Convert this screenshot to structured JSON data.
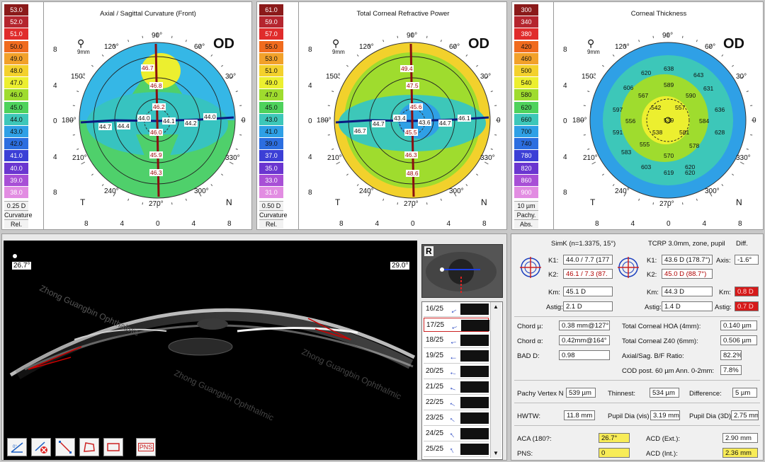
{
  "maps": [
    {
      "title": "Axial / Sagittal Curvature (Front)",
      "eye": "OD",
      "scale": [
        "53.0",
        "52.0",
        "51.0",
        "50.0",
        "49.0",
        "48.0",
        "47.0",
        "46.0",
        "45.0",
        "44.0",
        "43.0",
        "42.0",
        "41.0",
        "40.0",
        "39.0",
        "38.0"
      ],
      "scale_colors": [
        "#8b1a1a",
        "#b5252e",
        "#e02c2c",
        "#f06b1e",
        "#f2a12a",
        "#f4d12c",
        "#ecef2f",
        "#9fdc2e",
        "#4ed25c",
        "#3dc7b9",
        "#2fa0e6",
        "#2c6ee0",
        "#3b3fd6",
        "#6a36d0",
        "#a84fd6",
        "#e28de2"
      ],
      "step": "0.25 D",
      "mode": "Curvature",
      "ref": "Rel.",
      "values": [
        "46.7",
        "46.8",
        "46.2",
        "44.0",
        "44.1",
        "44.2",
        "44.0",
        "44.4",
        "44.7",
        "46.0",
        "45.9",
        "46.3"
      ]
    },
    {
      "title": "Total Corneal Refractive Power",
      "eye": "OD",
      "scale": [
        "61.0",
        "59.0",
        "57.0",
        "55.0",
        "53.0",
        "51.0",
        "49.0",
        "47.0",
        "45.0",
        "43.0",
        "41.0",
        "39.0",
        "37.0",
        "35.0",
        "33.0",
        "31.0"
      ],
      "scale_colors": [
        "#8b1a1a",
        "#b5252e",
        "#e02c2c",
        "#f06b1e",
        "#f2a12a",
        "#f4d12c",
        "#ecef2f",
        "#9fdc2e",
        "#4ed25c",
        "#3dc7b9",
        "#2fa0e6",
        "#2c6ee0",
        "#3b3fd6",
        "#6a36d0",
        "#a84fd6",
        "#e28de2"
      ],
      "step": "0.50 D",
      "mode": "Curvature",
      "ref": "Rel.",
      "values": [
        "49.4",
        "47.5",
        "45.6",
        "43.4",
        "43.6",
        "44.7",
        "46.1",
        "44.7",
        "46.7",
        "45.5",
        "46.3",
        "48.6"
      ]
    },
    {
      "title": "Corneal Thickness",
      "eye": "OD",
      "scale": [
        "300",
        "340",
        "380",
        "420",
        "460",
        "500",
        "540",
        "580",
        "620",
        "660",
        "700",
        "740",
        "780",
        "820",
        "860",
        "900"
      ],
      "scale_colors": [
        "#8b1a1a",
        "#b5252e",
        "#e02c2c",
        "#f06b1e",
        "#f2a12a",
        "#f4d12c",
        "#ecef2f",
        "#9fdc2e",
        "#4ed25c",
        "#3dc7b9",
        "#2fa0e6",
        "#2c6ee0",
        "#3b3fd6",
        "#6a36d0",
        "#a84fd6",
        "#e28de2"
      ],
      "step": "10 µm",
      "mode": "Pachy.",
      "ref": "Abs.",
      "values": [
        "638",
        "620",
        "589",
        "643",
        "606",
        "567",
        "590",
        "631",
        "597",
        "542",
        "557",
        "636",
        "556",
        "539",
        "584",
        "591",
        "538",
        "581",
        "628",
        "583",
        "555",
        "578",
        "570",
        "620",
        "603",
        "619",
        "620"
      ]
    }
  ],
  "axes": {
    "top": "90°",
    "bottom": "270°",
    "left": "180°",
    "right": "0",
    "a60": "60°",
    "a120": "120°",
    "a150": "150°",
    "a30": "30°",
    "a210": "210°",
    "a330": "330°",
    "a240": "240°",
    "a300": "300°",
    "zoom": "9mm",
    "T": "T",
    "N": "N"
  },
  "ticks_x": [
    "8",
    "4",
    "0",
    "4",
    "8"
  ],
  "ticks_y": [
    "8",
    "4",
    "0",
    "4",
    "8"
  ],
  "oct": {
    "left_marker": "26.7°",
    "right_marker": "29.0°",
    "eye_label": "R",
    "watermark": "Zhong Guangbin Ophthalmic"
  },
  "tools": [
    "angle-tool",
    "delete-tool",
    "line-tool",
    "area-tool",
    "distance-tool",
    "PNS"
  ],
  "slices": [
    "16/25",
    "17/25",
    "18/25",
    "19/25",
    "20/25",
    "21/25",
    "22/25",
    "23/25",
    "24/25",
    "25/25"
  ],
  "selected_slice": "17/25",
  "simk": {
    "title": "SimK (n=1.3375, 15°)",
    "k1_label": "K1:",
    "k1": "44.0 / 7.7 (177",
    "k2_label": "K2:",
    "k2": "46.1 / 7.3 (87.",
    "km_label": "Km:",
    "km": "45.1 D",
    "astig_label": "Astig:",
    "astig": "2.1 D"
  },
  "tcrp": {
    "title": "TCRP 3.0mm, zone, pupil",
    "diff_title": "Diff.",
    "k1": "43.6 D (178.7°)",
    "k2": "45.0 D (88.7°)",
    "km": "44.3 D",
    "astig": "1.4 D",
    "axis_label": "Axis:",
    "axis": "-1.6°",
    "km_diff_label": "Km:",
    "km_diff": "0.8 D",
    "astig_diff_label": "Astig:",
    "astig_diff": "0.7 D"
  },
  "chord": {
    "chord_mu_label": "Chord µ:",
    "chord_mu": "0.38 mm@127°",
    "chord_alpha_label": "Chord α:",
    "chord_alpha": "0.42mm@164°",
    "bad_label": "BAD D:",
    "bad": "0.98",
    "hoa_label": "Total Corneal HOA (4mm):",
    "hoa": "0.140 µm",
    "z40_label": "Total Corneal Z40 (6mm):",
    "z40": "0.506 µm",
    "bf_label": "Axial/Sag. B/F Ratio:",
    "bf": "82.2%",
    "cod_label": "COD post. 60 µm Ann. 0-2mm:",
    "cod": "7.8%"
  },
  "pachy": {
    "vertex_label": "Pachy Vertex N",
    "vertex": "539 µm",
    "thinnest_label": "Thinnest:",
    "thinnest": "534 µm",
    "difference_label": "Difference:",
    "difference": "5 µm"
  },
  "hwtw": {
    "hwtw_label": "HWTW:",
    "hwtw": "11.8 mm",
    "pupil_vis_label": "Pupil Dia (vis)",
    "pupil_vis": "3.19 mm",
    "pupil_3d_label": "Pupil Dia (3D)",
    "pupil_3d": "2.75 mm"
  },
  "acd": {
    "aca_label": "ACA (180?:",
    "aca": "26.7°",
    "acd_ext_label": "ACD (Ext.):",
    "acd_ext": "2.90 mm",
    "pns_label": "PNS:",
    "pns": "0",
    "acd_int_label": "ACD (Int.):",
    "acd_int": "2.36 mm"
  }
}
